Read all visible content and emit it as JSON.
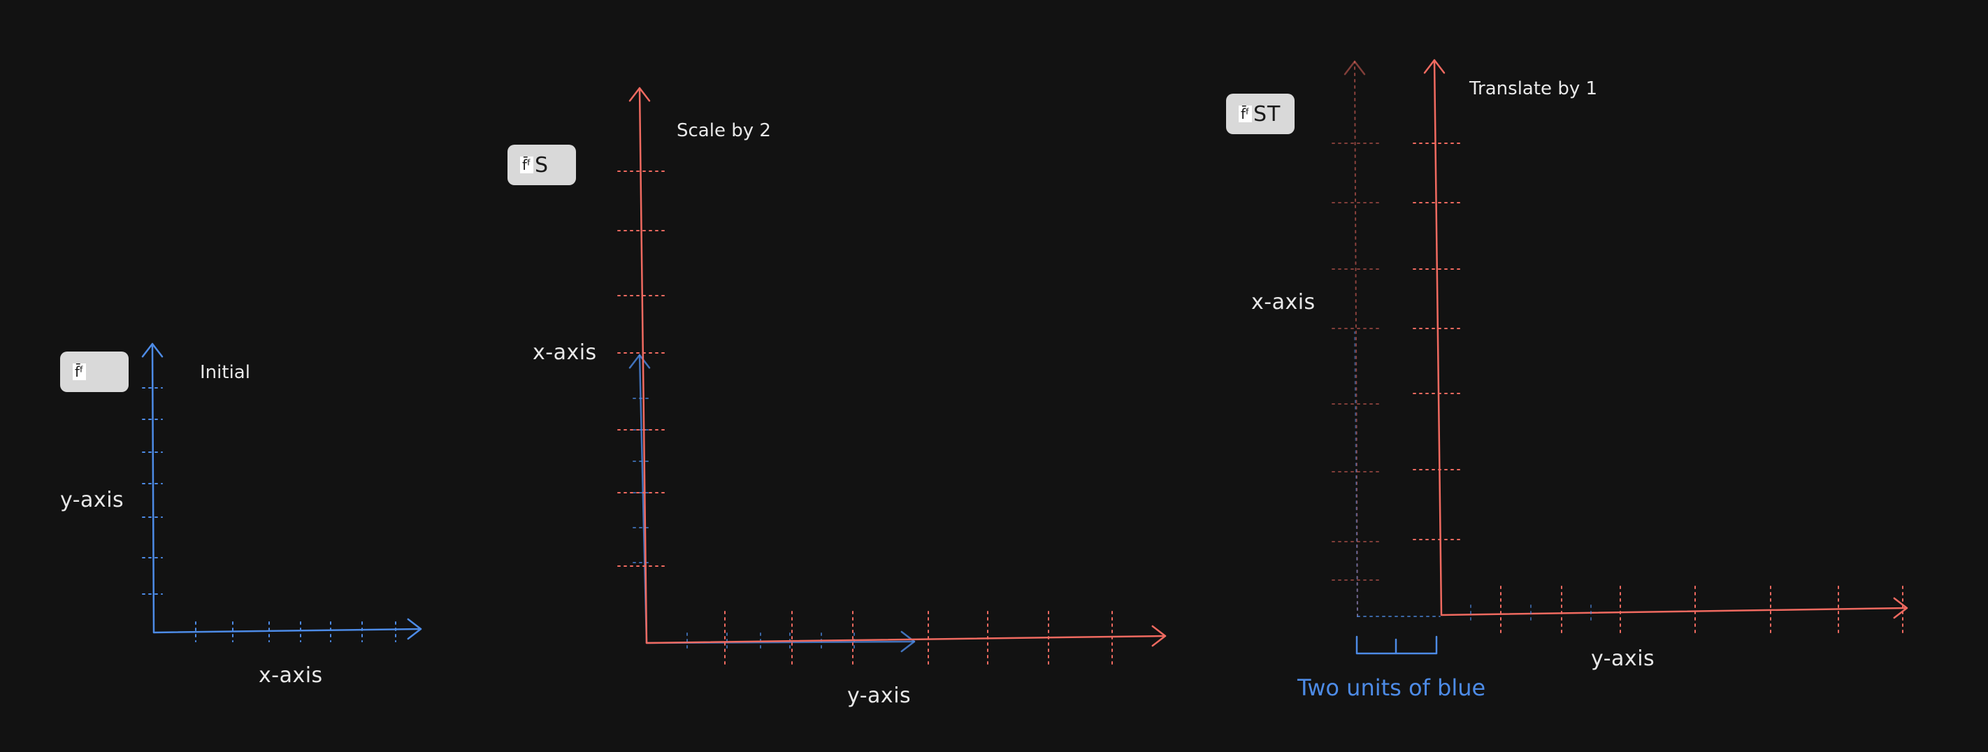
{
  "colors": {
    "blue": "#4d8be6",
    "red": "#f06a60",
    "text": "#e8e8e8",
    "background": "#121212",
    "badge": "#d9d9d9"
  },
  "panels": [
    {
      "badge": {
        "symbol": "f̄ᶠ",
        "suffix": ""
      },
      "title": "Initial",
      "vertical_axis_label": "y-axis",
      "horizontal_axis_label": "x-axis"
    },
    {
      "badge": {
        "symbol": "f̄ᶠ",
        "suffix": "S"
      },
      "title": "Scale by 2",
      "vertical_axis_label": "x-axis",
      "horizontal_axis_label": "y-axis"
    },
    {
      "badge": {
        "symbol": "f̄ᶠ",
        "suffix": "ST"
      },
      "title": "Translate by 1",
      "vertical_axis_label": "x-axis",
      "horizontal_axis_label": "y-axis",
      "annotation": "Two units of blue",
      "translation_units": 2
    }
  ]
}
